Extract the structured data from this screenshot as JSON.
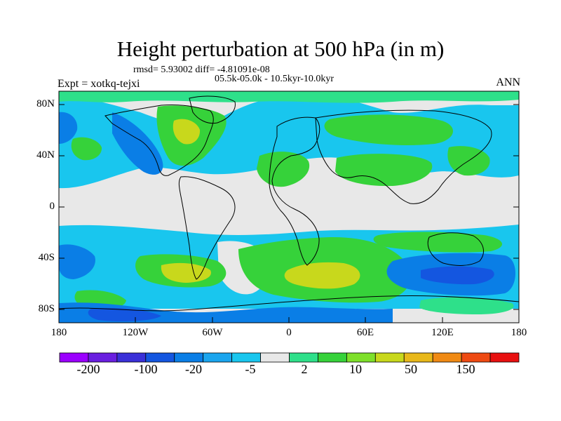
{
  "title": "Height perturbation at 500 hPa (in m)",
  "stats_line": "rmsd= 5.93002 diff= -4.81091e-08",
  "period_line": "05.5k-05.0k - 10.5kyr-10.0kyr",
  "experiment_label": "Expt = xotkq-tejxi",
  "season_label": "ANN",
  "lat_ticks": [
    "80N",
    "40N",
    "0",
    "40S",
    "80S"
  ],
  "lon_ticks": [
    "180",
    "120W",
    "60W",
    "0",
    "60E",
    "120E",
    "180"
  ],
  "colorbar": {
    "colors": [
      "#9b00ff",
      "#6a1fe0",
      "#3a30d8",
      "#1456e0",
      "#0a7ee6",
      "#1aa5ee",
      "#19c6ee",
      "#e8e8e8",
      "#2ee08a",
      "#36d23a",
      "#7ee02a",
      "#c8d81c",
      "#e8b81a",
      "#f08a14",
      "#ee4a12",
      "#e81010"
    ],
    "labels": [
      "-200",
      "-100",
      "-20",
      "-5",
      "2",
      "10",
      "50",
      "150"
    ]
  },
  "legend_colors": {
    "neutral": "#e8e8e8",
    "light_blue": "#1aa5ee",
    "cyan": "#19c6ee",
    "blue": "#0a7ee6",
    "dark_blue": "#1456e0",
    "teal_green": "#2ee08a",
    "green": "#36d23a",
    "yellow_green": "#c8d81c"
  }
}
